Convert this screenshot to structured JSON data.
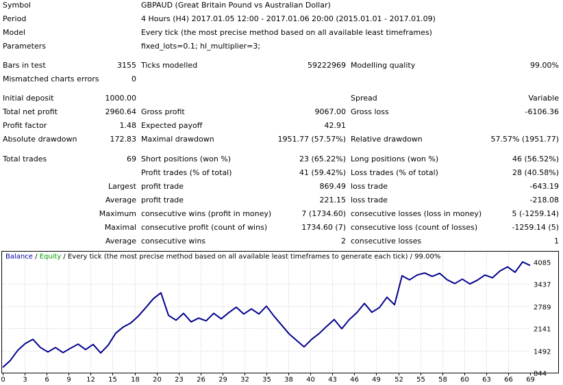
{
  "header": {
    "symbol_label": "Symbol",
    "symbol_value": "GBPAUD (Great Britain Pound vs Australian Dollar)",
    "period_label": "Period",
    "period_value": "4 Hours (H4) 2017.01.05 12:00 - 2017.01.06 20:00 (2015.01.01 - 2017.01.09)",
    "model_label": "Model",
    "model_value": "Every tick (the most precise method based on all available least timeframes)",
    "parameters_label": "Parameters",
    "parameters_value": "fixed_lots=0.1; hl_multiplier=3;"
  },
  "test": {
    "bars_label": "Bars in test",
    "bars_value": "3155",
    "ticks_label": "Ticks modelled",
    "ticks_value": "59222969",
    "quality_label": "Modelling quality",
    "quality_value": "99.00%",
    "mismatch_label": "Mismatched charts errors",
    "mismatch_value": "0"
  },
  "results": {
    "initial_deposit_label": "Initial deposit",
    "initial_deposit_value": "1000.00",
    "spread_label": "Spread",
    "spread_value": "Variable",
    "net_profit_label": "Total net profit",
    "net_profit_value": "2960.64",
    "gross_profit_label": "Gross profit",
    "gross_profit_value": "9067.00",
    "gross_loss_label": "Gross loss",
    "gross_loss_value": "-6106.36",
    "profit_factor_label": "Profit factor",
    "profit_factor_value": "1.48",
    "expected_payoff_label": "Expected payoff",
    "expected_payoff_value": "42.91",
    "abs_dd_label": "Absolute drawdown",
    "abs_dd_value": "172.83",
    "max_dd_label": "Maximal drawdown",
    "max_dd_value": "1951.77 (57.57%)",
    "rel_dd_label": "Relative drawdown",
    "rel_dd_value": "57.57% (1951.77)"
  },
  "trades": {
    "total_label": "Total trades",
    "total_value": "69",
    "short_label": "Short positions (won %)",
    "short_value": "23 (65.22%)",
    "long_label": "Long positions (won %)",
    "long_value": "46 (56.52%)",
    "profit_trades_label": "Profit trades (% of total)",
    "profit_trades_value": "41 (59.42%)",
    "loss_trades_label": "Loss trades (% of total)",
    "loss_trades_value": "28 (40.58%)",
    "largest_label": "Largest",
    "largest_profit_label": "profit trade",
    "largest_profit_value": "869.49",
    "largest_loss_label": "loss trade",
    "largest_loss_value": "-643.19",
    "average_label": "Average",
    "average_profit_label": "profit trade",
    "average_profit_value": "221.15",
    "average_loss_label": "loss trade",
    "average_loss_value": "-218.08",
    "maximum_label": "Maximum",
    "max_cons_wins_label": "consecutive wins (profit in money)",
    "max_cons_wins_value": "7 (1734.60)",
    "max_cons_losses_label": "consecutive losses (loss in money)",
    "max_cons_losses_value": "5 (-1259.14)",
    "maximal_label": "Maximal",
    "maximal_cons_profit_label": "consecutive profit (count of wins)",
    "maximal_cons_profit_value": "1734.60 (7)",
    "maximal_cons_loss_label": "consecutive loss (count of losses)",
    "maximal_cons_loss_value": "-1259.14 (5)",
    "average2_label": "Average",
    "avg_cons_wins_label": "consecutive wins",
    "avg_cons_wins_value": "2",
    "avg_cons_losses_label": "consecutive losses",
    "avg_cons_losses_value": "1"
  },
  "chart_caption": {
    "balance": "Balance",
    "sep1": " / ",
    "equity": "Equity",
    "rest": " / Every tick (the most precise method based on all available least timeframes to generate each tick) / 99.00%"
  },
  "colors": {
    "balance_line": "#00008b",
    "equity": "#00a000",
    "grid": "#c8c8c8"
  },
  "chart_data": {
    "type": "line",
    "x_tick_labels": [
      "0",
      "3",
      "6",
      "9",
      "12",
      "15",
      "18",
      "20",
      "23",
      "26",
      "29",
      "32",
      "35",
      "38",
      "40",
      "43",
      "46",
      "49",
      "52",
      "55",
      "58",
      "60",
      "63",
      "66",
      "69"
    ],
    "y_tick_labels": [
      "4085",
      "3437",
      "2789",
      "2141",
      "1492",
      "844"
    ],
    "ylim": [
      844,
      4085
    ],
    "xlim": [
      0,
      70
    ],
    "grid": true,
    "series": [
      {
        "name": "Balance",
        "x": [
          0,
          1,
          2,
          3,
          4,
          5,
          6,
          7,
          8,
          9,
          10,
          11,
          12,
          13,
          14,
          15,
          16,
          17,
          18,
          19,
          20,
          21,
          22,
          23,
          24,
          25,
          26,
          27,
          28,
          29,
          30,
          31,
          32,
          33,
          34,
          35,
          36,
          37,
          38,
          39,
          40,
          41,
          42,
          43,
          44,
          45,
          46,
          47,
          48,
          49,
          50,
          51,
          52,
          53,
          54,
          55,
          56,
          57,
          58,
          59,
          60,
          61,
          62,
          63,
          64,
          65,
          66,
          67,
          68,
          69,
          70
        ],
        "values": [
          1000,
          1200,
          1500,
          1700,
          1820,
          1580,
          1450,
          1580,
          1430,
          1560,
          1680,
          1520,
          1670,
          1420,
          1650,
          2000,
          2180,
          2300,
          2500,
          2750,
          3010,
          3180,
          2520,
          2380,
          2580,
          2330,
          2440,
          2360,
          2580,
          2420,
          2600,
          2760,
          2560,
          2710,
          2560,
          2790,
          2500,
          2240,
          1980,
          1790,
          1600,
          1820,
          1990,
          2200,
          2400,
          2130,
          2400,
          2600,
          2870,
          2610,
          2750,
          3050,
          2830,
          3680,
          3560,
          3700,
          3760,
          3660,
          3750,
          3560,
          3450,
          3580,
          3440,
          3550,
          3700,
          3620,
          3820,
          3940,
          3780,
          4085,
          3980
        ]
      }
    ]
  }
}
